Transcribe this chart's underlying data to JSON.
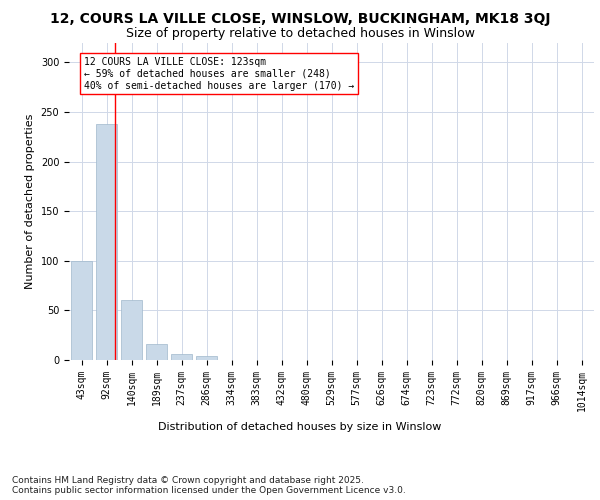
{
  "title_line1": "12, COURS LA VILLE CLOSE, WINSLOW, BUCKINGHAM, MK18 3QJ",
  "title_line2": "Size of property relative to detached houses in Winslow",
  "xlabel": "Distribution of detached houses by size in Winslow",
  "ylabel": "Number of detached properties",
  "bin_labels": [
    "43sqm",
    "92sqm",
    "140sqm",
    "189sqm",
    "237sqm",
    "286sqm",
    "334sqm",
    "383sqm",
    "432sqm",
    "480sqm",
    "529sqm",
    "577sqm",
    "626sqm",
    "674sqm",
    "723sqm",
    "772sqm",
    "820sqm",
    "869sqm",
    "917sqm",
    "966sqm",
    "1014sqm"
  ],
  "bar_values": [
    100,
    238,
    60,
    16,
    6,
    4,
    0,
    0,
    0,
    0,
    0,
    0,
    0,
    0,
    0,
    0,
    0,
    0,
    0,
    0,
    0
  ],
  "bar_color": "#c9d9e8",
  "bar_edge_color": "#a0b8cc",
  "grid_color": "#d0d8e8",
  "background_color": "#ffffff",
  "red_line_x": 1.35,
  "annotation_text": "12 COURS LA VILLE CLOSE: 123sqm\n← 59% of detached houses are smaller (248)\n40% of semi-detached houses are larger (170) →",
  "footer_text": "Contains HM Land Registry data © Crown copyright and database right 2025.\nContains public sector information licensed under the Open Government Licence v3.0.",
  "ylim": [
    0,
    320
  ],
  "yticks": [
    0,
    50,
    100,
    150,
    200,
    250,
    300
  ],
  "title_fontsize": 10,
  "subtitle_fontsize": 9,
  "axis_fontsize": 8,
  "tick_fontsize": 7,
  "annotation_fontsize": 7,
  "footer_fontsize": 6.5
}
